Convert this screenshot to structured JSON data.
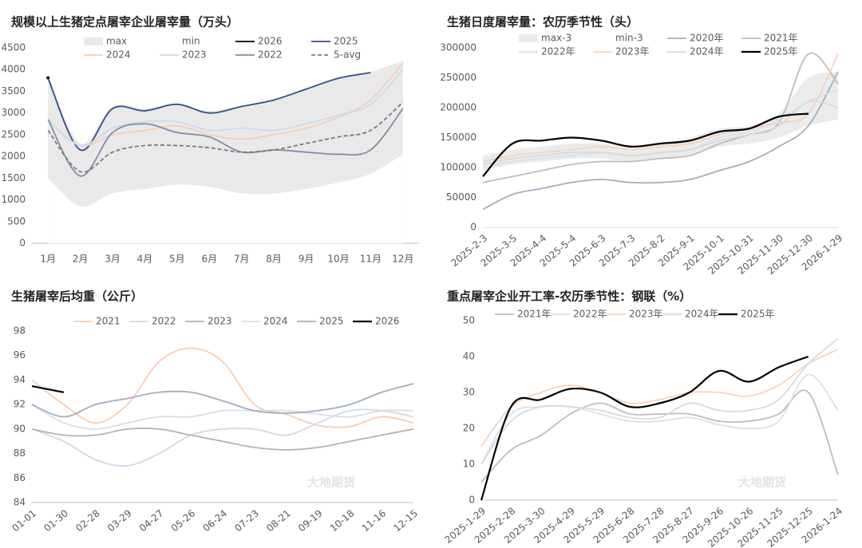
{
  "chart_data": [
    {
      "type": "line",
      "title": "规模以上生猪定点屠宰企业屠宰量（万头）",
      "watermark": "大地期货",
      "categories": [
        "1月",
        "2月",
        "3月",
        "4月",
        "5月",
        "6月",
        "7月",
        "8月",
        "9月",
        "10月",
        "11月",
        "12月"
      ],
      "ylim": [
        0,
        4500
      ],
      "yticks": [
        0,
        500,
        1000,
        1500,
        2000,
        2500,
        3000,
        3500,
        4000,
        4500
      ],
      "series": [
        {
          "name": "max",
          "color": "#e9e9e9",
          "area": true,
          "values": [
            3850,
            2300,
            3150,
            3100,
            3200,
            3050,
            3150,
            3300,
            3550,
            3800,
            3950,
            4200
          ]
        },
        {
          "name": "min",
          "color": "#ffffff",
          "area": true,
          "values": [
            1500,
            850,
            1150,
            1250,
            1350,
            1300,
            1150,
            1150,
            1250,
            1400,
            1600,
            2050
          ]
        },
        {
          "name": "2026",
          "color": "#000000",
          "values": [
            3810,
            null,
            null,
            null,
            null,
            null,
            null,
            null,
            null,
            null,
            null,
            null
          ]
        },
        {
          "name": "2025",
          "color": "#2f4d8a",
          "values": [
            3800,
            2150,
            3100,
            3050,
            3200,
            3000,
            3150,
            3300,
            3550,
            3800,
            3930,
            null
          ]
        },
        {
          "name": "2024",
          "color": "#f6cdb3",
          "values": [
            2850,
            2250,
            2500,
            2600,
            2700,
            2500,
            2400,
            2500,
            2650,
            2900,
            3300,
            4150
          ]
        },
        {
          "name": "2023",
          "color": "#cdd9ea",
          "values": [
            2850,
            2250,
            2650,
            2800,
            2800,
            2600,
            2650,
            2600,
            2750,
            2950,
            3200,
            4000
          ]
        },
        {
          "name": "2022",
          "color": "#7f8ea6",
          "values": [
            2850,
            1550,
            2550,
            2750,
            2550,
            2450,
            2100,
            2150,
            2100,
            2050,
            2150,
            3100
          ]
        },
        {
          "name": "5-avg",
          "color": "#7a7a7a",
          "dash": true,
          "values": [
            2600,
            1650,
            2100,
            2250,
            2250,
            2200,
            2100,
            2150,
            2300,
            2450,
            2600,
            3250
          ]
        }
      ]
    },
    {
      "type": "line",
      "title": "生猪日度屠宰量：农历季节性（头）",
      "watermark": "大地期货",
      "categories": [
        "2025-2-3",
        "2025-3-5",
        "2025-4-4",
        "2025-5-4",
        "2025-6-3",
        "2025-7-3",
        "2025-8-2",
        "2025-9-1",
        "2025-10-1",
        "2025-10-31",
        "2025-11-30",
        "2025-12-30",
        "2026-1-29"
      ],
      "ylim": [
        0,
        300000
      ],
      "yticks": [
        0,
        50000,
        100000,
        150000,
        200000,
        250000,
        300000
      ],
      "series": [
        {
          "name": "max-3",
          "color": "#ebebeb",
          "area": true,
          "values": [
            120000,
            130000,
            135000,
            140000,
            140000,
            135000,
            140000,
            150000,
            165000,
            170000,
            190000,
            250000,
            260000
          ]
        },
        {
          "name": "min-3",
          "color": "#ffffff",
          "area": true,
          "values": [
            95000,
            105000,
            110000,
            115000,
            115000,
            110000,
            115000,
            120000,
            135000,
            140000,
            150000,
            170000,
            180000
          ]
        },
        {
          "name": "2020年",
          "color": "#a3adbf",
          "values": [
            30000,
            55000,
            65000,
            75000,
            80000,
            75000,
            75000,
            80000,
            95000,
            110000,
            135000,
            170000,
            260000
          ]
        },
        {
          "name": "2021年",
          "color": "#bdbdbd",
          "values": [
            75000,
            85000,
            95000,
            105000,
            110000,
            110000,
            115000,
            120000,
            140000,
            155000,
            175000,
            290000,
            240000
          ]
        },
        {
          "name": "2022年",
          "color": "#d6e2f0",
          "values": [
            100000,
            110000,
            115000,
            120000,
            125000,
            120000,
            125000,
            130000,
            150000,
            160000,
            180000,
            210000,
            230000
          ]
        },
        {
          "name": "2023年",
          "color": "#f6d2bc",
          "values": [
            110000,
            120000,
            125000,
            130000,
            135000,
            130000,
            135000,
            140000,
            155000,
            165000,
            175000,
            190000,
            290000
          ]
        },
        {
          "name": "2024年",
          "color": "#d9d9d9",
          "values": [
            105000,
            115000,
            120000,
            125000,
            125000,
            120000,
            125000,
            130000,
            145000,
            155000,
            170000,
            210000,
            200000
          ]
        },
        {
          "name": "2025年",
          "color": "#000000",
          "bold": true,
          "values": [
            85000,
            140000,
            145000,
            150000,
            145000,
            135000,
            140000,
            145000,
            160000,
            165000,
            185000,
            190000,
            null
          ]
        }
      ]
    },
    {
      "type": "line",
      "title": "生猪屠宰后均重（公斤）",
      "watermark": "大地期货",
      "categories": [
        "01-01",
        "01-30",
        "02-28",
        "03-29",
        "04-27",
        "05-26",
        "06-24",
        "07-23",
        "08-21",
        "09-19",
        "10-18",
        "11-16",
        "12-15"
      ],
      "ylim": [
        84,
        98
      ],
      "yticks": [
        84,
        86,
        88,
        90,
        92,
        94,
        96,
        98
      ],
      "series": [
        {
          "name": "2021",
          "color": "#f6cdb3",
          "values": [
            94,
            92,
            90.5,
            92,
            95.5,
            96.6,
            95.5,
            92,
            91.2,
            90.3,
            90.2,
            91,
            90.5
          ]
        },
        {
          "name": "2022",
          "color": "#cdd9ea",
          "values": [
            90,
            89,
            87.5,
            87,
            88,
            89.5,
            90,
            90,
            89.5,
            90.5,
            91.5,
            91.5,
            91
          ]
        },
        {
          "name": "2023",
          "color": "#b3b3b3",
          "values": [
            90,
            89.5,
            89.5,
            90,
            90,
            89.5,
            89,
            88.5,
            88.3,
            88.5,
            89,
            89.5,
            90
          ]
        },
        {
          "name": "2024",
          "color": "#d9dee6",
          "values": [
            92,
            90.5,
            90,
            90.5,
            91,
            91,
            91.5,
            91.5,
            91.5,
            91.2,
            91,
            91.5,
            91.5
          ]
        },
        {
          "name": "2025",
          "color": "#a3adbf",
          "values": [
            92,
            91,
            92,
            92.5,
            93,
            93,
            92.3,
            91.5,
            91.3,
            91.5,
            92,
            93,
            93.7
          ]
        },
        {
          "name": "2026",
          "color": "#000000",
          "bold": true,
          "values": [
            93.5,
            93,
            null,
            null,
            null,
            null,
            null,
            null,
            null,
            null,
            null,
            null,
            null
          ]
        }
      ]
    },
    {
      "type": "line",
      "title": "重点屠宰企业开工率-农历季节性：钢联（%）",
      "watermark": "大地期货",
      "categories": [
        "2025-1-29",
        "2025-2-28",
        "2025-3-30",
        "2025-4-29",
        "2025-5-29",
        "2025-6-28",
        "2025-7-28",
        "2025-8-27",
        "2025-9-26",
        "2025-10-26",
        "2025-11-25",
        "2025-12-25",
        "2026-1-24"
      ],
      "ylim": [
        0,
        50
      ],
      "yticks": [
        0,
        10,
        20,
        30,
        40,
        50
      ],
      "series": [
        {
          "name": "2021年",
          "color": "#bdbdbd",
          "values": [
            5,
            14,
            18,
            24,
            27,
            24,
            24,
            24,
            22,
            22,
            24,
            30,
            7
          ]
        },
        {
          "name": "2022年",
          "color": "#d6e2f0",
          "values": [
            10,
            24,
            26,
            26,
            24,
            22,
            22,
            23,
            21,
            20,
            22,
            35,
            25
          ]
        },
        {
          "name": "2023年",
          "color": "#f6d2bc",
          "values": [
            15,
            26,
            30,
            32,
            30,
            27,
            28,
            30,
            30,
            29,
            32,
            38,
            42
          ]
        },
        {
          "name": "2024年",
          "color": "#d9d9d9",
          "values": [
            10,
            22,
            26,
            26,
            25,
            23,
            23,
            27,
            25,
            25,
            28,
            38,
            45
          ]
        },
        {
          "name": "2025年",
          "color": "#000000",
          "bold": true,
          "values": [
            0,
            26,
            28,
            31,
            30,
            26,
            27,
            30,
            36,
            33,
            37,
            40,
            null
          ]
        }
      ]
    }
  ]
}
